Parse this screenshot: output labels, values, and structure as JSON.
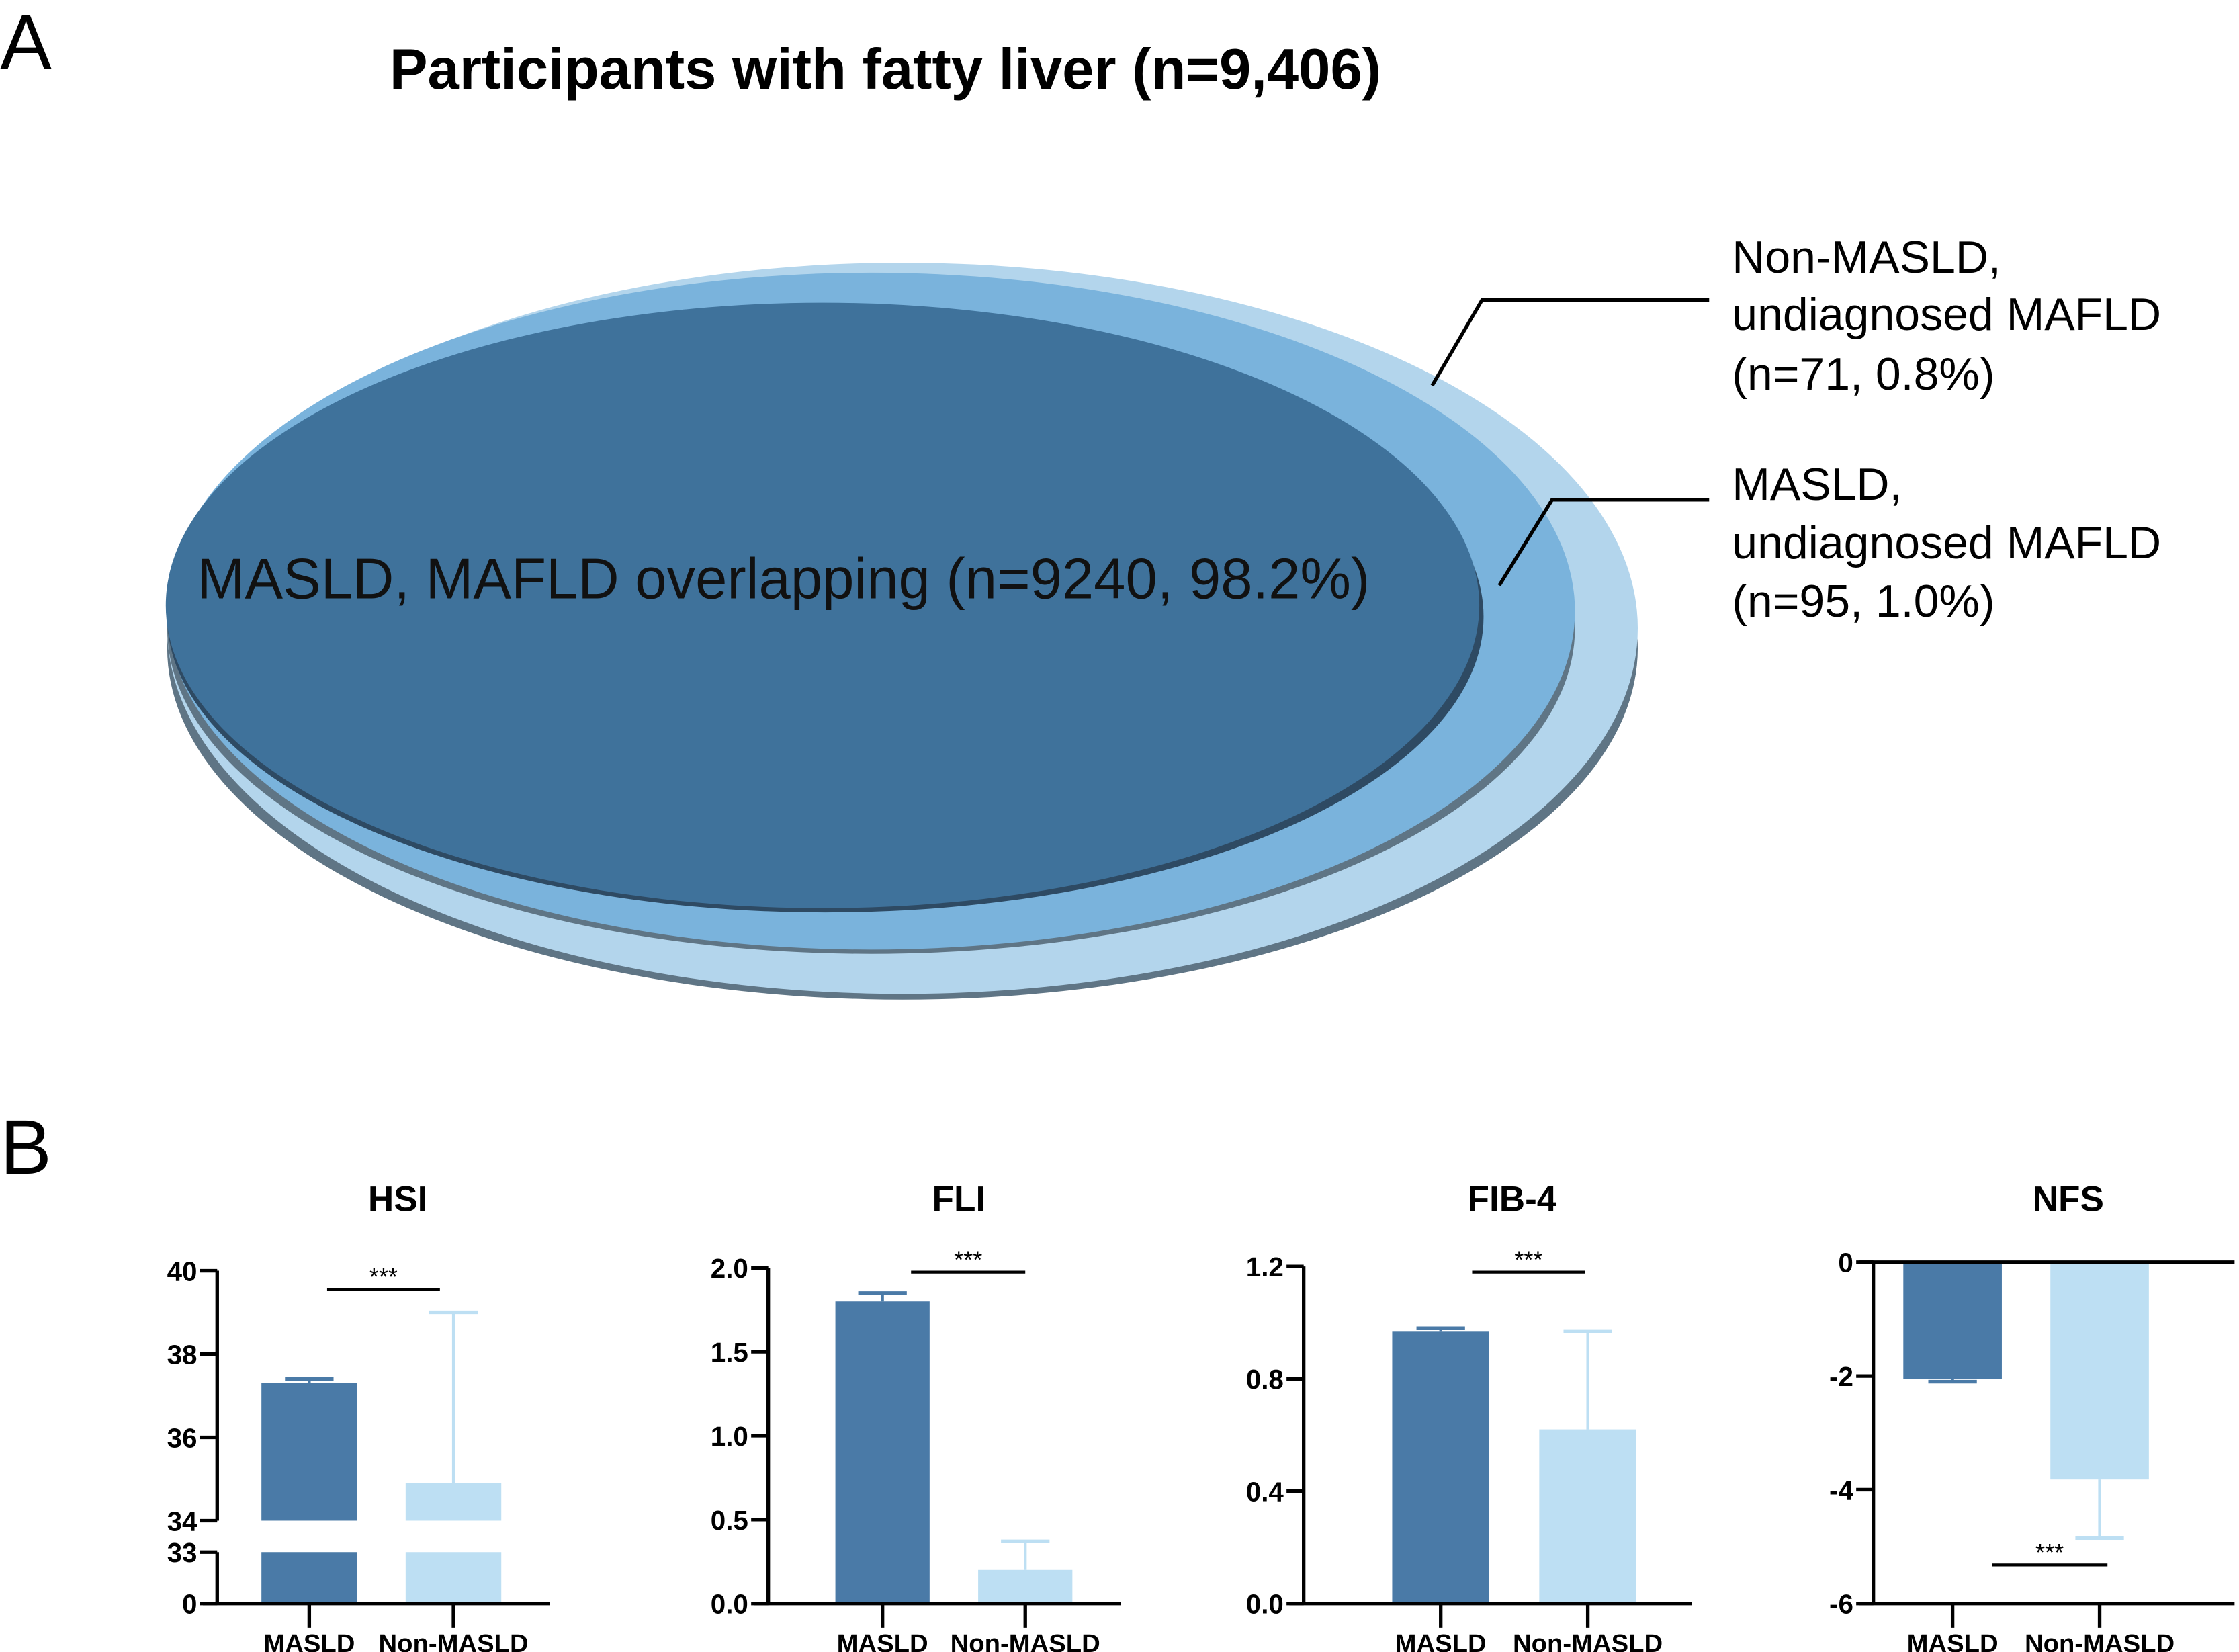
{
  "panel_a": {
    "letter": "A",
    "title": "Participants with fatty liver (n=9,406)",
    "center_label": "MASLD, MAFLD overlapping (n=9240, 98.2%)",
    "callout_outer": [
      "Non-MASLD,",
      "undiagnosed MAFLD",
      "(n=71, 0.8%)"
    ],
    "callout_middle": [
      "MASLD,",
      "undiagnosed MAFLD",
      "(n=95, 1.0%)"
    ],
    "colors": {
      "inner": "#3f729b",
      "middle": "#7ab3dc",
      "outer": "#b3d5ec",
      "shadow": "#5f7585"
    }
  },
  "panel_b": {
    "letter": "B"
  },
  "chart_data": [
    {
      "type": "bar",
      "title": "HSI",
      "categories": [
        "MASLD",
        "Non-MASLD"
      ],
      "values": [
        37.3,
        34.9
      ],
      "error_upper": [
        37.4,
        39.0
      ],
      "yticks": [
        "0",
        "33",
        "34",
        "36",
        "38",
        "40"
      ],
      "ylim": [
        0,
        40
      ],
      "axis_break": [
        33,
        34
      ],
      "significance": "***"
    },
    {
      "type": "bar",
      "title": "FLI",
      "categories": [
        "MASLD",
        "Non-MASLD"
      ],
      "values": [
        1.8,
        0.2
      ],
      "error_upper": [
        1.85,
        0.37
      ],
      "yticks": [
        "0.0",
        "0.5",
        "1.0",
        "1.5",
        "2.0"
      ],
      "ylim": [
        0,
        2.0
      ],
      "significance": "***"
    },
    {
      "type": "bar",
      "title": "FIB-4",
      "categories": [
        "MASLD",
        "Non-MASLD"
      ],
      "values": [
        0.97,
        0.62
      ],
      "error_upper": [
        0.98,
        0.97
      ],
      "yticks": [
        "0.0",
        "0.4",
        "0.8",
        "1.2"
      ],
      "ylim": [
        0,
        1.2
      ],
      "significance": "***"
    },
    {
      "type": "bar",
      "title": "NFS",
      "categories": [
        "MASLD",
        "Non-MASLD"
      ],
      "values": [
        -2.05,
        -3.82
      ],
      "error_lower": [
        -2.1,
        -4.85
      ],
      "yticks": [
        "-6",
        "-4",
        "-2",
        "0"
      ],
      "ylim": [
        -6,
        0
      ],
      "significance": "***"
    }
  ],
  "colors": {
    "masld": "#4a7aa7",
    "non_masld": "#bddff3"
  }
}
